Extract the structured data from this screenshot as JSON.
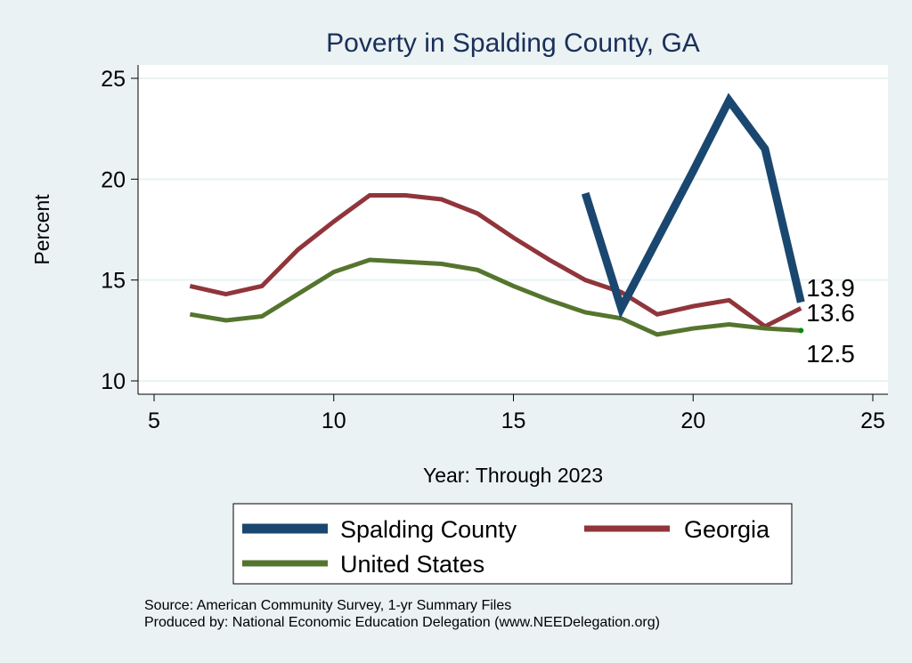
{
  "chart_data": {
    "type": "line",
    "title": "Poverty in Spalding County, GA",
    "xlabel": "Year: Through 2023",
    "ylabel": "Percent",
    "xlim": [
      5,
      25
    ],
    "ylim": [
      10,
      25
    ],
    "xticks": [
      5,
      10,
      15,
      20,
      25
    ],
    "yticks": [
      10,
      15,
      20,
      25
    ],
    "grid": true,
    "legend_position": "bottom",
    "series": [
      {
        "name": "Spalding County",
        "color": "#1a476f",
        "width": 9,
        "x": [
          17,
          18,
          19,
          20,
          21,
          22,
          23
        ],
        "y": [
          19.3,
          13.6,
          17.0,
          20.4,
          23.9,
          21.5,
          13.9
        ],
        "end_label": "13.9"
      },
      {
        "name": "Georgia",
        "color": "#90353b",
        "width": 5,
        "x": [
          6,
          7,
          8,
          9,
          10,
          11,
          12,
          13,
          14,
          15,
          16,
          17,
          18,
          19,
          20,
          21,
          22,
          23
        ],
        "y": [
          14.7,
          14.3,
          14.7,
          16.5,
          17.9,
          19.2,
          19.2,
          19.0,
          18.3,
          17.1,
          16.0,
          15.0,
          14.4,
          13.3,
          13.7,
          14.0,
          12.7,
          13.6
        ],
        "end_label": "13.6"
      },
      {
        "name": "United States",
        "color": "#55752f",
        "width": 5,
        "x": [
          6,
          7,
          8,
          9,
          10,
          11,
          12,
          13,
          14,
          15,
          16,
          17,
          18,
          19,
          20,
          21,
          22,
          23
        ],
        "y": [
          13.3,
          13.0,
          13.2,
          14.3,
          15.4,
          16.0,
          15.9,
          15.8,
          15.5,
          14.7,
          14.0,
          13.4,
          13.1,
          12.3,
          12.6,
          12.8,
          12.6,
          12.5
        ],
        "end_label": "12.5"
      }
    ]
  },
  "notes": {
    "source": "Source: American Community Survey, 1-yr Summary Files",
    "produced": "Produced by: National Economic Education Delegation (www.NEEDelegation.org)"
  }
}
